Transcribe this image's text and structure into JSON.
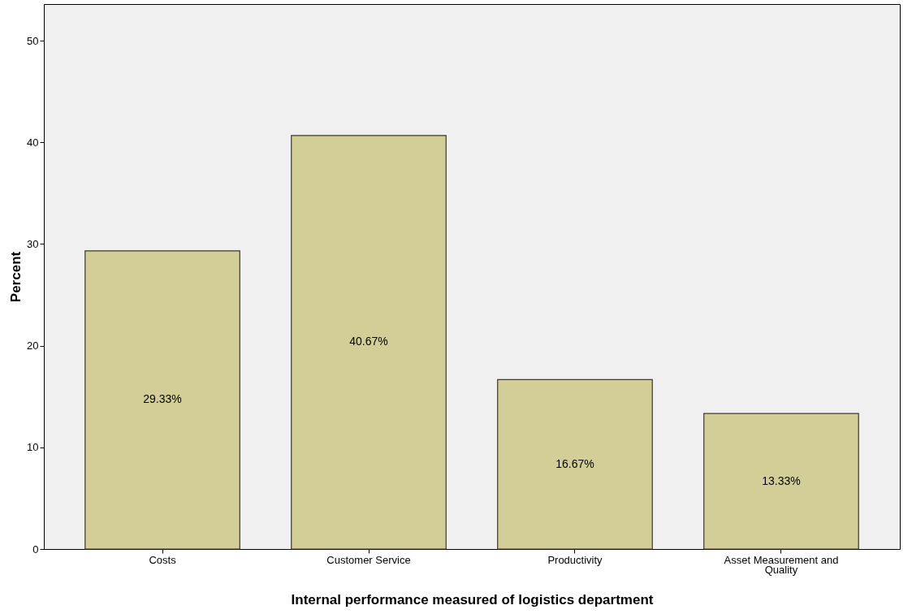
{
  "chart_data": {
    "type": "bar",
    "xlabel": "Internal performance measured of logistics department",
    "ylabel": "Percent",
    "categories": [
      "Costs",
      "Customer Service",
      "Productivity",
      "Asset Measurement and Quality"
    ],
    "values": [
      29.33,
      40.67,
      16.67,
      13.33
    ],
    "value_labels": [
      "29.33%",
      "40.67%",
      "16.67%",
      "13.33%"
    ],
    "color": "#d3ce97",
    "ylim": [
      0,
      53.6
    ],
    "yticks": [
      0,
      10,
      20,
      30,
      40,
      50
    ],
    "grid": false
  }
}
